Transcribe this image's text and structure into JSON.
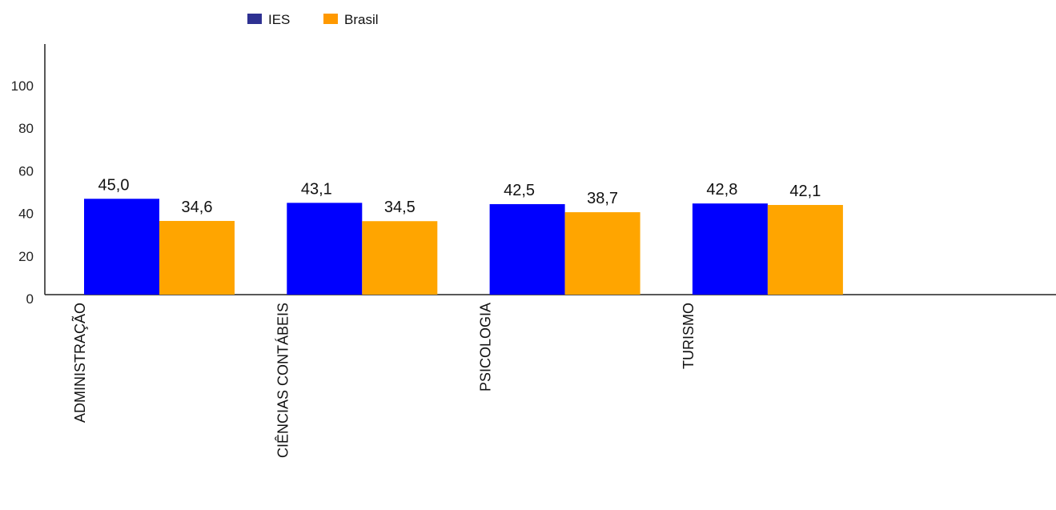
{
  "chart_data": {
    "type": "bar",
    "categories": [
      "ADMINISTRAÇÃO",
      "CIÊNCIAS CONTÁBEIS",
      "PSICOLOGIA",
      "TURISMO"
    ],
    "series": [
      {
        "name": "IES",
        "values": [
          45.0,
          43.1,
          42.5,
          42.8
        ],
        "labels": [
          "45,0",
          "43,1",
          "42,5",
          "42,8"
        ],
        "color": "#0000ff",
        "legend_color": "#2e3192"
      },
      {
        "name": "Brasil",
        "values": [
          34.6,
          34.5,
          38.7,
          42.1
        ],
        "labels": [
          "34,6",
          "34,5",
          "38,7",
          "42,1"
        ],
        "color": "#ffa500",
        "legend_color": "#ff9900"
      }
    ],
    "ylim": [
      0,
      120
    ],
    "yticks": [
      "0",
      "20",
      "40",
      "60",
      "80",
      "100"
    ],
    "grid": false,
    "legend": "top"
  }
}
